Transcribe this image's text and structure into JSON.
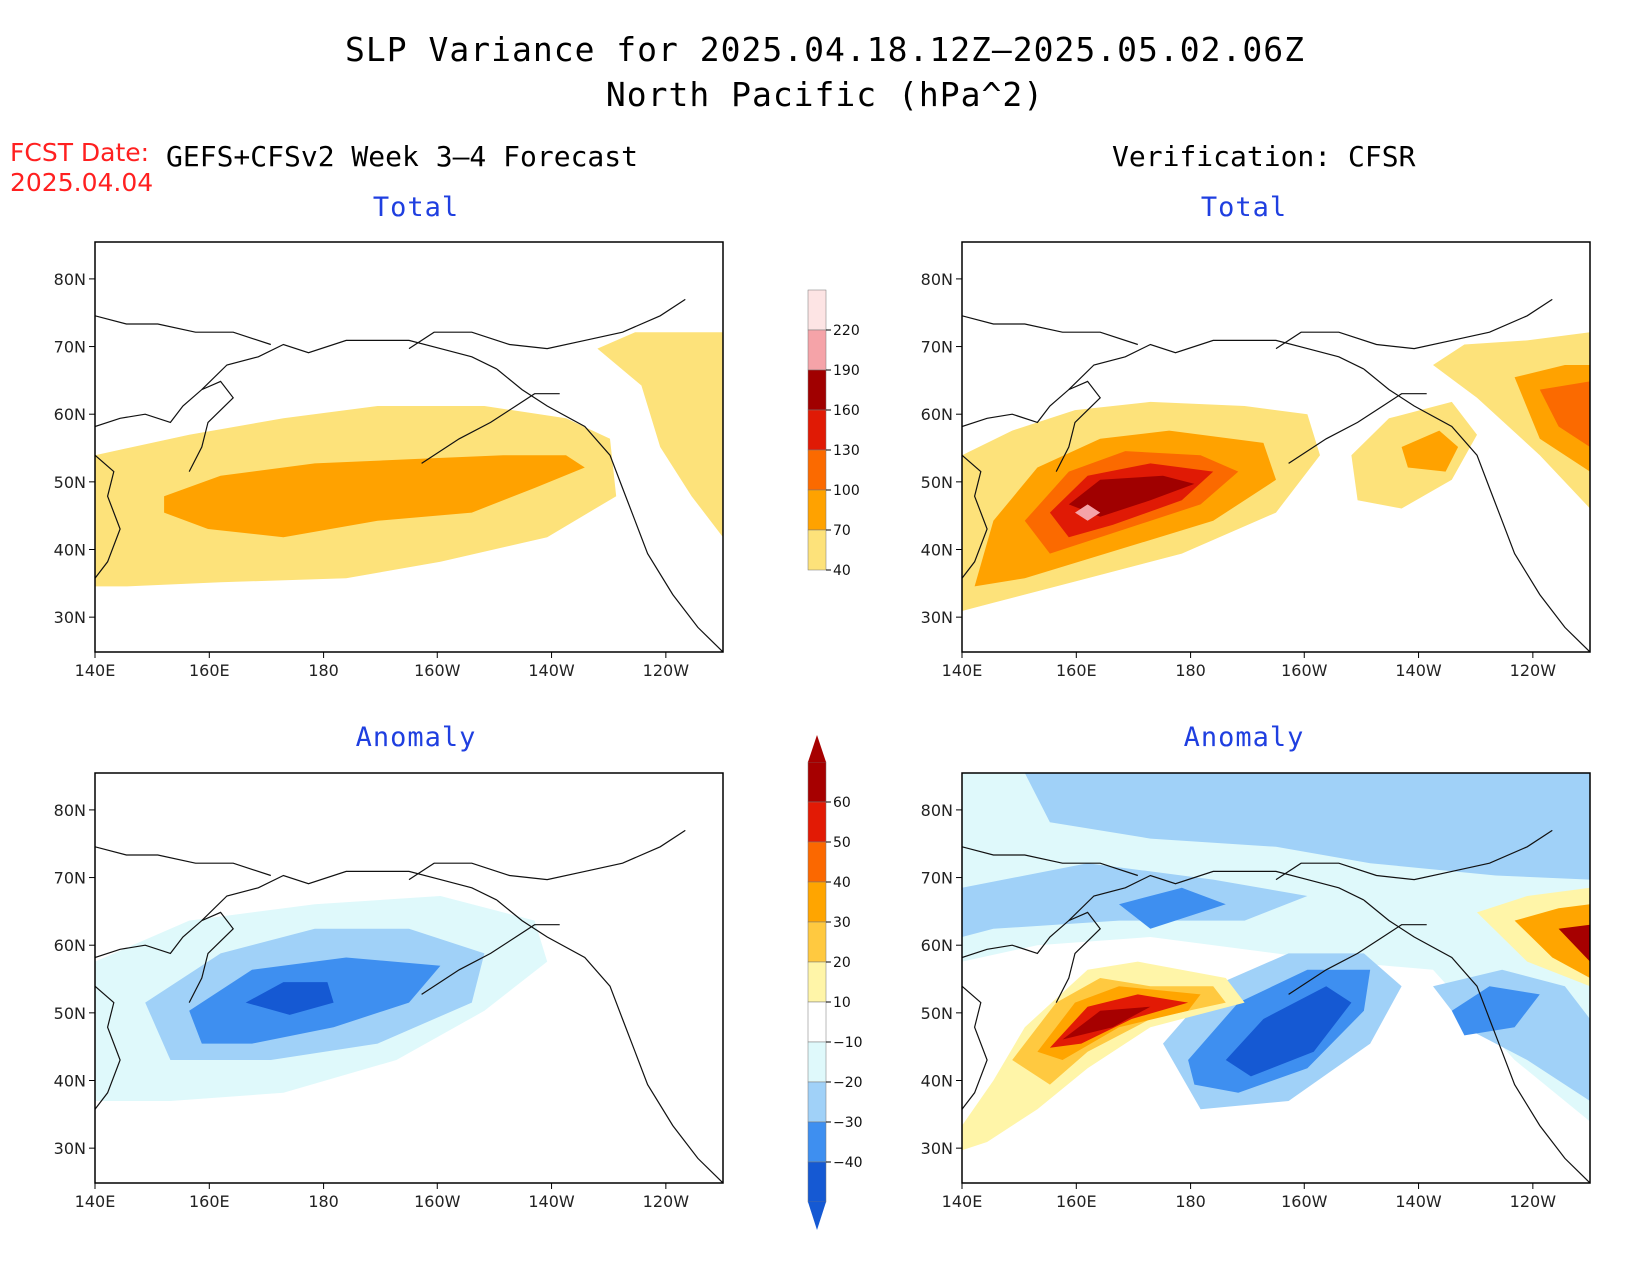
{
  "header": {
    "title_line1": "SLP Variance for 2025.04.18.12Z–2025.05.02.06Z",
    "title_line2": "North Pacific (hPa^2)",
    "fcst_label": "FCST Date:",
    "fcst_date": "2025.04.04",
    "left_subtitle": "GEFS+CFSv2 Week 3–4 Forecast",
    "right_subtitle": "Verification: CFSR"
  },
  "panels": {
    "top_left_title": "Total",
    "top_right_title": "Total",
    "bottom_left_title": "Anomaly",
    "bottom_right_title": "Anomaly"
  },
  "axes": {
    "lon_ticks": [
      "140E",
      "160E",
      "180",
      "160W",
      "140W",
      "120W"
    ],
    "lat_ticks": [
      "80N",
      "70N",
      "60N",
      "50N",
      "40N",
      "30N"
    ]
  },
  "colorbar_total": {
    "labels": [
      "220",
      "190",
      "160",
      "130",
      "100",
      "70",
      "40"
    ],
    "colors": [
      "#fde4e4",
      "#f5a3a8",
      "#a00000",
      "#e01a05",
      "#fb6a00",
      "#ffa200",
      "#fde27a"
    ]
  },
  "colorbar_anomaly": {
    "labels": [
      "60",
      "50",
      "40",
      "30",
      "20",
      "10",
      "−10",
      "−20",
      "−30",
      "−40"
    ],
    "colors": [
      "#a60000",
      "#e21a05",
      "#fb6800",
      "#ffa500",
      "#ffc940",
      "#fff5a8",
      "#ffffff",
      "#dff9fb",
      "#a0d1f8",
      "#3e8ff0",
      "#1559d3"
    ]
  },
  "map_colors": {
    "c40": "#fde27a",
    "c70": "#ffa200",
    "c100": "#fb6a00",
    "c130": "#e01a05",
    "c160": "#a00000",
    "c190": "#f5a3a8",
    "a_pos10": "#fff5a8",
    "a_pos20": "#ffc940",
    "a_pos30": "#ffa500",
    "a_pos40": "#fb6800",
    "a_pos50": "#e21a05",
    "a_pos60": "#a60000",
    "a_neg10": "#dff9fb",
    "a_neg20": "#a0d1f8",
    "a_neg30": "#3e8ff0",
    "a_neg40": "#1559d3"
  }
}
